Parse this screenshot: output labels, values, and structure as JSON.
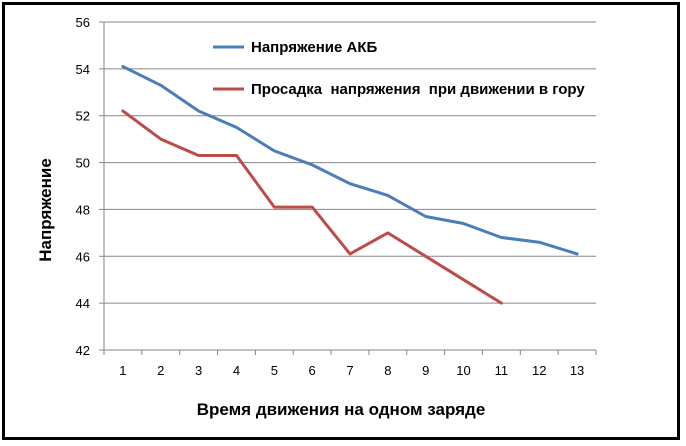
{
  "chart_data": {
    "type": "line",
    "title": "",
    "xlabel": "Время движения на одном заряде",
    "ylabel": "Напряжение",
    "categories": [
      "1",
      "2",
      "3",
      "4",
      "5",
      "6",
      "7",
      "8",
      "9",
      "10",
      "11",
      "12",
      "13"
    ],
    "ylim": [
      42,
      56
    ],
    "yticks": [
      "42",
      "44",
      "46",
      "48",
      "50",
      "52",
      "54",
      "56"
    ],
    "grid": "horizontal",
    "legend_position": "top-right",
    "series": [
      {
        "name": "Напряжение АКБ",
        "color": "#4a7ebb",
        "values": [
          54.1,
          53.3,
          52.2,
          51.5,
          50.5,
          49.9,
          49.1,
          48.6,
          47.7,
          47.4,
          46.8,
          46.6,
          46.1
        ]
      },
      {
        "name": "Просадка  напряжения  при движении в гору",
        "color": "#be4b48",
        "values": [
          52.2,
          51.0,
          50.3,
          50.3,
          48.1,
          48.1,
          46.1,
          47.0,
          46.0,
          45.0,
          44.0,
          null,
          null
        ]
      }
    ]
  }
}
